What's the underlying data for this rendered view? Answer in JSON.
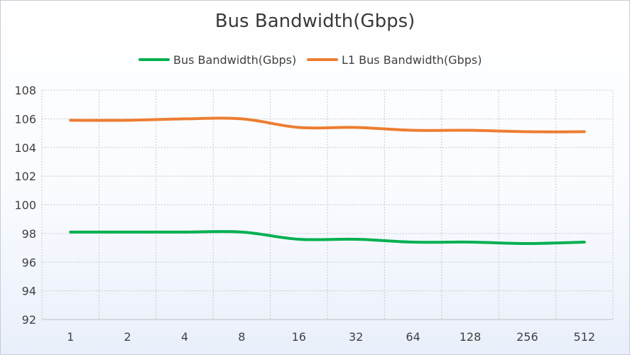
{
  "chart_data": {
    "type": "line",
    "title": "Bus Bandwidth(Gbps)",
    "categories": [
      "1",
      "2",
      "4",
      "8",
      "16",
      "32",
      "64",
      "128",
      "256",
      "512"
    ],
    "series": [
      {
        "name": "Bus Bandwidth(Gbps)",
        "color": "#00b050",
        "values": [
          98.1,
          98.1,
          98.1,
          98.1,
          97.6,
          97.6,
          97.4,
          97.4,
          97.3,
          97.4
        ]
      },
      {
        "name": "L1 Bus Bandwidth(Gbps)",
        "color": "#ed7d31",
        "values": [
          105.9,
          105.9,
          106.0,
          106.0,
          105.4,
          105.4,
          105.2,
          105.2,
          105.1,
          105.1
        ]
      }
    ],
    "ylim": [
      92,
      108
    ],
    "yticks": [
      92,
      94,
      96,
      98,
      100,
      102,
      104,
      106,
      108
    ],
    "grid": true,
    "legend_position": "top"
  }
}
